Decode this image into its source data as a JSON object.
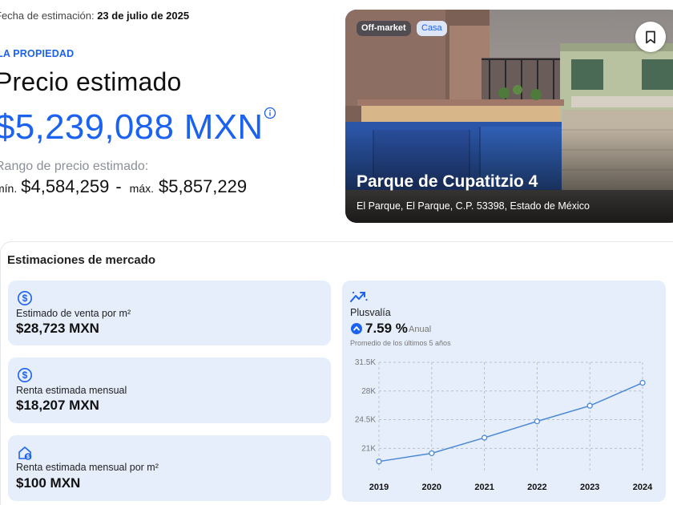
{
  "estimate": {
    "date_label": "Fecha de estimación:",
    "date_value": "23 de julio de 2025",
    "section": "LA PROPIEDAD",
    "heading": "Precio estimado",
    "price": "$5,239,088 MXN",
    "range_label": "Rango de precio estimado:",
    "min_label": "mín.",
    "min_value": "$4,584,259",
    "separator": "-",
    "max_label": "máx.",
    "max_value": "$5,857,229"
  },
  "property": {
    "badge_offmarket": "Off-market",
    "badge_type": "Casa",
    "title": "Parque de Cupatitzio 4",
    "address": "El Parque, El Parque, C.P. 53398, Estado de México"
  },
  "market": {
    "title": "Estimaciones de mercado",
    "stats": [
      {
        "label": "Estimado de venta por m²",
        "value": "$28,723 MXN",
        "icon": "dollar-circle-icon"
      },
      {
        "label": "Renta estimada mensual",
        "value": "$18,207 MXN",
        "icon": "dollar-circle-icon"
      },
      {
        "label": "Renta estimada mensual por m²",
        "value": "$100 MXN",
        "icon": "house-dollar-icon"
      }
    ],
    "plusvalia": {
      "label": "Plusvalía",
      "value": "7.59 %",
      "period": "Anual",
      "note": "Promedio de los últimos 5 años"
    }
  },
  "colors": {
    "accent": "#1b62f0",
    "card_bg": "#e6eefb",
    "line": "#4a88d8"
  },
  "chart_data": {
    "type": "line",
    "x": [
      "2019",
      "2020",
      "2021",
      "2022",
      "2023",
      "2024"
    ],
    "series": [
      {
        "values": [
          19400,
          20400,
          22300,
          24300,
          26200,
          29000
        ]
      }
    ],
    "y_ticks": [
      "21K",
      "24.5K",
      "28K",
      "31.5K"
    ],
    "y_tick_values": [
      21000,
      24500,
      28000,
      31500
    ],
    "ylim": [
      18000,
      31500
    ],
    "grid": true
  }
}
